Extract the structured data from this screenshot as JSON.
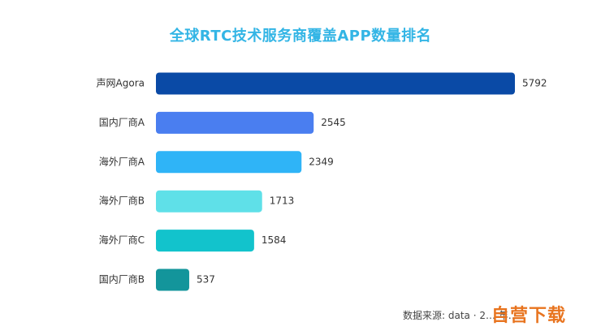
{
  "chart_data": {
    "type": "bar",
    "orientation": "horizontal",
    "title": "全球RTC技术服务商覆盖APP数量排名",
    "categories": [
      "声网Agora",
      "国内厂商A",
      "海外厂商A",
      "海外厂商B",
      "海外厂商C",
      "国内厂商B"
    ],
    "values": [
      5792,
      2545,
      2349,
      1713,
      1584,
      537
    ],
    "colors": [
      "#0a4aa6",
      "#4a7ef0",
      "#2fb4f7",
      "#5fe0e8",
      "#12c3cc",
      "#13959b"
    ],
    "xlim": [
      0,
      5792
    ],
    "grid": false,
    "legend": "none"
  },
  "source_note": "数据来源: data · 2… 年…",
  "watermark": "自营下载"
}
